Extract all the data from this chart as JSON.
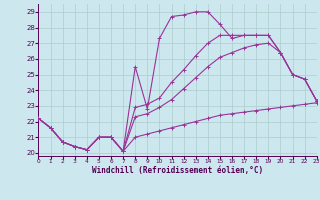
{
  "xlabel": "Windchill (Refroidissement éolien,°C)",
  "xlim": [
    0,
    23
  ],
  "ylim": [
    19.8,
    29.5
  ],
  "yticks": [
    20,
    21,
    22,
    23,
    24,
    25,
    26,
    27,
    28,
    29
  ],
  "xticks": [
    0,
    1,
    2,
    3,
    4,
    5,
    6,
    7,
    8,
    9,
    10,
    11,
    12,
    13,
    14,
    15,
    16,
    17,
    18,
    19,
    20,
    21,
    22,
    23
  ],
  "bg_color": "#cce8ee",
  "line_color": "#993399",
  "grid_color": "#aacccc",
  "curve1_x": [
    0,
    1,
    2,
    3,
    4,
    5,
    6,
    7,
    8,
    9,
    10,
    11,
    12,
    13,
    14,
    15,
    16,
    17,
    18,
    19,
    20,
    21,
    22,
    23
  ],
  "curve1_y": [
    22.2,
    21.6,
    20.7,
    20.4,
    20.2,
    21.0,
    21.0,
    20.1,
    25.5,
    22.8,
    27.3,
    28.7,
    28.8,
    29.0,
    29.0,
    28.2,
    27.3,
    27.5,
    27.5,
    27.5,
    26.4,
    25.0,
    24.7,
    23.3
  ],
  "curve2_x": [
    0,
    1,
    2,
    3,
    4,
    5,
    6,
    7,
    8,
    9,
    10,
    11,
    12,
    13,
    14,
    15,
    16,
    17,
    18,
    19,
    20,
    21,
    22,
    23
  ],
  "curve2_y": [
    22.2,
    21.6,
    20.7,
    20.4,
    20.2,
    21.0,
    21.0,
    20.1,
    22.9,
    23.1,
    23.5,
    24.5,
    25.3,
    26.2,
    27.0,
    27.5,
    27.5,
    27.5,
    27.5,
    27.5,
    26.4,
    25.0,
    24.7,
    23.3
  ],
  "curve3_x": [
    0,
    1,
    2,
    3,
    4,
    5,
    6,
    7,
    8,
    9,
    10,
    11,
    12,
    13,
    14,
    15,
    16,
    17,
    18,
    19,
    20,
    21,
    22,
    23
  ],
  "curve3_y": [
    22.2,
    21.6,
    20.7,
    20.4,
    20.2,
    21.0,
    21.0,
    20.1,
    22.3,
    22.5,
    22.9,
    23.4,
    24.1,
    24.8,
    25.5,
    26.1,
    26.4,
    26.7,
    26.9,
    27.0,
    26.4,
    25.0,
    24.7,
    23.3
  ],
  "curve4_x": [
    0,
    1,
    2,
    3,
    4,
    5,
    6,
    7,
    8,
    9,
    10,
    11,
    12,
    13,
    14,
    15,
    16,
    17,
    18,
    19,
    20,
    21,
    22,
    23
  ],
  "curve4_y": [
    22.2,
    21.6,
    20.7,
    20.4,
    20.2,
    21.0,
    21.0,
    20.1,
    21.0,
    21.2,
    21.4,
    21.6,
    21.8,
    22.0,
    22.2,
    22.4,
    22.5,
    22.6,
    22.7,
    22.8,
    22.9,
    23.0,
    23.1,
    23.2
  ]
}
